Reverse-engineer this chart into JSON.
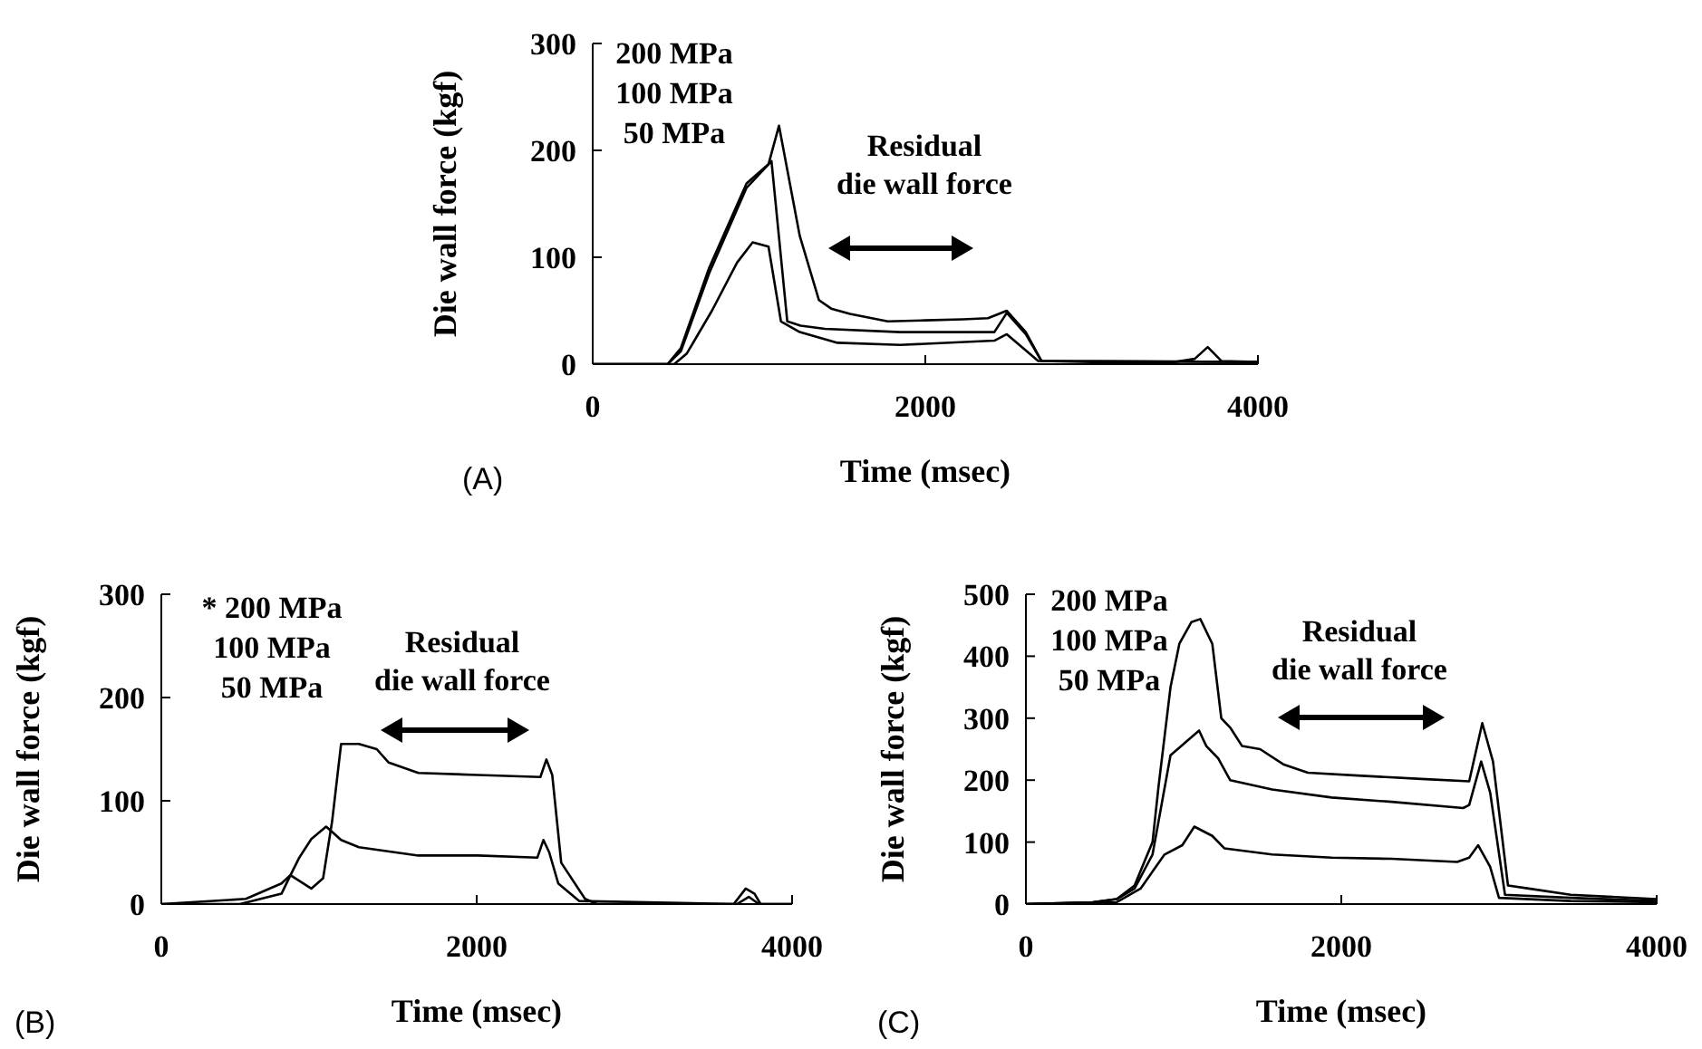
{
  "chart_data": [
    {
      "type": "line",
      "xlabel": "Time (msec)",
      "ylabel": "Die wall force (kgf)",
      "xlim": [
        0,
        4000
      ],
      "ylim": [
        0,
        300
      ],
      "xticks": [
        0,
        2000,
        4000
      ],
      "yticks": [
        0,
        100,
        200,
        300
      ],
      "annotations": [
        "(A)",
        "200 MPa",
        "100 MPa",
        "50 MPa",
        "Residual\ndie wall force"
      ],
      "series": [
        {
          "color": "#000000",
          "x": [
            0,
            450,
            530,
            700,
            925,
            1057,
            1120,
            1245,
            1360,
            1434,
            1547,
            1774,
            2000,
            2226,
            2377,
            2490,
            2604,
            2698,
            3000,
            3500,
            3620,
            3698,
            3780,
            4000
          ],
          "values": [
            0,
            0,
            15,
            90,
            169,
            187,
            223,
            120,
            60,
            52,
            47,
            40,
            41,
            42,
            43,
            50,
            30,
            3,
            2,
            2,
            5,
            16,
            3,
            2
          ]
        },
        {
          "color": "#000000",
          "x": [
            0,
            450,
            530,
            700,
            925,
            1075,
            1170,
            1250,
            1396,
            1849,
            2415,
            2490,
            2604,
            2698,
            4000
          ],
          "values": [
            0,
            0,
            12,
            85,
            165,
            190,
            40,
            36,
            33,
            30,
            30,
            48,
            28,
            3,
            2
          ]
        },
        {
          "color": "#000000",
          "x": [
            0,
            490,
            566,
            717,
            868,
            962,
            1057,
            1132,
            1245,
            1472,
            1849,
            2415,
            2490,
            2679,
            4000
          ],
          "values": [
            0,
            0,
            10,
            50,
            95,
            114,
            110,
            40,
            30,
            20,
            18,
            22,
            28,
            3,
            2
          ]
        }
      ]
    },
    {
      "type": "line",
      "xlabel": "Time (msec)",
      "ylabel": "Die wall force (kgf)",
      "xlim": [
        0,
        4000
      ],
      "ylim": [
        0,
        300
      ],
      "xticks": [
        0,
        2000,
        4000
      ],
      "yticks": [
        0,
        100,
        200,
        300
      ],
      "annotations": [
        "(B)",
        "* 200 MPa",
        "100 MPa",
        "50 MPa",
        "Residual\ndie wall force"
      ],
      "series": [
        {
          "color": "#000000",
          "x": [
            0,
            498,
            762,
            819,
            951,
            1026,
            1083,
            1140,
            1253,
            1366,
            1442,
            1630,
            2008,
            2404,
            2442,
            2479,
            2536,
            2687,
            2762,
            3630,
            3706,
            3762,
            3800,
            4000
          ],
          "values": [
            0,
            0,
            10,
            28,
            15,
            25,
            80,
            155,
            155,
            150,
            137,
            127,
            125,
            123,
            140,
            125,
            40,
            5,
            0,
            0,
            15,
            10,
            0,
            0
          ]
        },
        {
          "color": "#000000",
          "x": [
            0,
            536,
            762,
            819,
            875,
            951,
            1045,
            1083,
            1140,
            1253,
            1630,
            2008,
            2385,
            2423,
            2460,
            2517,
            2649,
            3650,
            3725,
            3790,
            4000
          ],
          "values": [
            0,
            5,
            20,
            28,
            45,
            63,
            75,
            70,
            62,
            55,
            47,
            47,
            45,
            62,
            50,
            20,
            3,
            0,
            7,
            0,
            0
          ]
        }
      ]
    },
    {
      "type": "line",
      "xlabel": "Time (msec)",
      "ylabel": "Die wall force (kgf)",
      "xlim": [
        0,
        4000
      ],
      "ylim": [
        0,
        500
      ],
      "xticks": [
        0,
        2000,
        4000
      ],
      "yticks": [
        0,
        100,
        200,
        300,
        400,
        500
      ],
      "annotations": [
        "(C)",
        "200 MPa",
        "100 MPa",
        "50 MPa",
        "Residual\ndie wall force"
      ],
      "series": [
        {
          "color": "#000000",
          "x": [
            0,
            424,
            576,
            689,
            803,
            841,
            917,
            973,
            1049,
            1106,
            1182,
            1239,
            1295,
            1371,
            1485,
            1636,
            1788,
            2129,
            2508,
            2811,
            2894,
            2962,
            3057,
            3189,
            3455,
            4000
          ],
          "values": [
            0,
            3,
            8,
            30,
            100,
            190,
            350,
            420,
            455,
            460,
            420,
            300,
            285,
            255,
            250,
            225,
            212,
            207,
            202,
            198,
            292,
            230,
            30,
            25,
            15,
            8
          ]
        },
        {
          "color": "#000000",
          "x": [
            0,
            424,
            576,
            689,
            803,
            917,
            1030,
            1098,
            1144,
            1220,
            1295,
            1561,
            1939,
            2318,
            2773,
            2811,
            2887,
            2944,
            3038,
            3455,
            4000
          ],
          "values": [
            0,
            3,
            8,
            25,
            80,
            240,
            265,
            280,
            255,
            235,
            200,
            185,
            172,
            165,
            155,
            160,
            230,
            180,
            15,
            10,
            5
          ]
        },
        {
          "color": "#000000",
          "x": [
            0,
            440,
            576,
            727,
            879,
            992,
            1068,
            1182,
            1258,
            1561,
            1939,
            2318,
            2735,
            2811,
            2868,
            2944,
            3000,
            3455,
            4000
          ],
          "values": [
            0,
            2,
            3,
            25,
            80,
            95,
            125,
            110,
            90,
            80,
            75,
            73,
            68,
            75,
            95,
            60,
            10,
            5,
            3
          ]
        }
      ]
    }
  ]
}
